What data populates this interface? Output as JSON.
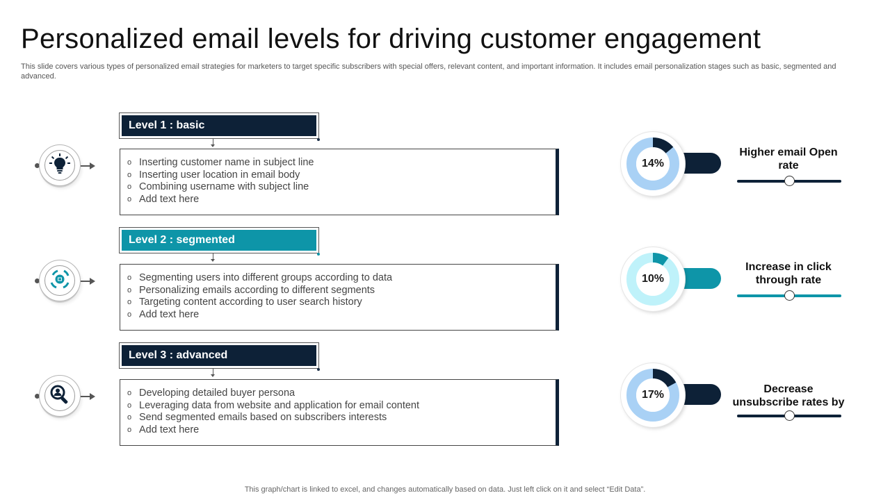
{
  "title": "Personalized email levels for driving customer engagement",
  "subtitle": "This slide covers various types of personalized email strategies for marketers to target specific subscribers with special offers, relevant content, and important information. It includes email personalization stages such as basic, segmented and advanced.",
  "levels": [
    {
      "heading": "Level 1 : basic",
      "icon": "lightbulb-icon",
      "color": "#0d2137",
      "items": [
        "Inserting customer name in subject line",
        "Inserting user location in email body",
        "Combining username with subject line",
        "Add text here"
      ]
    },
    {
      "heading": "Level 2 : segmented",
      "icon": "target-gear-icon",
      "color": "#0e95a8",
      "items": [
        "Segmenting users into different groups according to data",
        "Personalizing emails according to different segments",
        "Targeting content according to user search history",
        "Add text here"
      ]
    },
    {
      "heading": "Level 3 : advanced",
      "icon": "magnifier-user-icon",
      "color": "#0d2137",
      "items": [
        "Developing detailed buyer persona",
        "Leveraging data from website and application for email content",
        "Send segmented emails based on subscribers interests",
        "Add text here"
      ]
    }
  ],
  "metrics": [
    {
      "percent_label": "14%",
      "value": 14,
      "label": "Higher email Open rate",
      "ring_color": "#a9d1f5",
      "accent_color": "#0d2137",
      "slider_level": 0.5
    },
    {
      "percent_label": "10%",
      "value": 10,
      "label": "Increase in click through rate",
      "ring_color": "#bff2fa",
      "accent_color": "#0e95a8",
      "slider_level": 0.5
    },
    {
      "percent_label": "17%",
      "value": 17,
      "label": "Decrease unsubscribe rates by",
      "ring_color": "#a9d1f5",
      "accent_color": "#0d2137",
      "slider_level": 0.5
    }
  ],
  "footer": "This graph/chart is linked to excel, and changes automatically based on data. Just left click on it and select “Edit Data”."
}
